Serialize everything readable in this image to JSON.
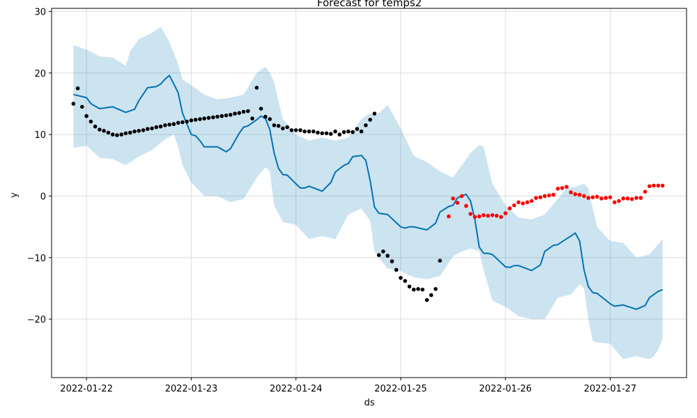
{
  "chart_data": {
    "type": "line",
    "title": "Forecast for temps2",
    "xlabel": "ds",
    "ylabel": "y",
    "x_ticks": [
      "2022-01-22",
      "2022-01-23",
      "2022-01-24",
      "2022-01-25",
      "2022-01-26",
      "2022-01-27"
    ],
    "y_ticks": [
      "30",
      "20",
      "10",
      "0",
      "−10",
      "−20"
    ],
    "xlim": [
      "2022-01-21T16:00",
      "2022-01-27T17:30"
    ],
    "ylim": [
      -29.5,
      30.5
    ],
    "grid": true,
    "legend": false,
    "colors": {
      "forecast_line": "#0072b2",
      "interval_band": "#0072b2",
      "history_points": "#000000",
      "test_points": "#ff0000",
      "grid": "#dddddd"
    },
    "series": [
      {
        "name": "yhat",
        "kind": "line",
        "x": [
          "2022-01-21T21:00",
          "2022-01-22T00:00",
          "2022-01-22T01:00",
          "2022-01-22T03:00",
          "2022-01-22T06:00",
          "2022-01-22T09:00",
          "2022-01-22T11:00",
          "2022-01-22T12:00",
          "2022-01-22T14:00",
          "2022-01-22T16:00",
          "2022-01-22T17:00",
          "2022-01-22T18:00",
          "2022-01-22T19:00",
          "2022-01-22T21:00",
          "2022-01-22T22:00",
          "2022-01-23T00:00",
          "2022-01-23T01:00",
          "2022-01-23T02:00",
          "2022-01-23T03:00",
          "2022-01-23T06:00",
          "2022-01-23T08:00",
          "2022-01-23T09:00",
          "2022-01-23T11:00",
          "2022-01-23T12:00",
          "2022-01-23T13:00",
          "2022-01-23T15:00",
          "2022-01-23T16:00",
          "2022-01-23T17:00",
          "2022-01-23T18:00",
          "2022-01-23T19:00",
          "2022-01-23T20:00",
          "2022-01-23T21:00",
          "2022-01-23T22:00",
          "2022-01-24T00:00",
          "2022-01-24T01:00",
          "2022-01-24T02:00",
          "2022-01-24T03:00",
          "2022-01-24T06:00",
          "2022-01-24T08:00",
          "2022-01-24T09:00",
          "2022-01-24T11:00",
          "2022-01-24T12:00",
          "2022-01-24T13:00",
          "2022-01-24T15:00",
          "2022-01-24T16:00",
          "2022-01-24T17:00",
          "2022-01-24T18:00",
          "2022-01-24T19:00",
          "2022-01-24T20:00",
          "2022-01-24T21:00",
          "2022-01-25T00:00",
          "2022-01-25T01:00",
          "2022-01-25T02:00",
          "2022-01-25T03:00",
          "2022-01-25T06:00",
          "2022-01-25T08:00",
          "2022-01-25T09:00",
          "2022-01-25T11:00",
          "2022-01-25T12:00",
          "2022-01-25T13:00",
          "2022-01-25T15:00",
          "2022-01-25T16:00",
          "2022-01-25T17:00",
          "2022-01-25T18:00",
          "2022-01-25T19:00",
          "2022-01-25T20:00",
          "2022-01-25T21:00",
          "2022-01-26T00:00",
          "2022-01-26T01:00",
          "2022-01-26T02:00",
          "2022-01-26T03:00",
          "2022-01-26T06:00",
          "2022-01-26T08:00",
          "2022-01-26T09:00",
          "2022-01-26T11:00",
          "2022-01-26T12:00",
          "2022-01-26T13:00",
          "2022-01-26T15:00",
          "2022-01-26T16:00",
          "2022-01-26T17:00",
          "2022-01-26T18:00",
          "2022-01-26T19:00",
          "2022-01-26T20:00",
          "2022-01-26T21:00",
          "2022-01-27T00:00",
          "2022-01-27T01:00",
          "2022-01-27T02:00",
          "2022-01-27T03:00",
          "2022-01-27T06:00",
          "2022-01-27T08:00",
          "2022-01-27T09:00",
          "2022-01-27T11:00",
          "2022-01-27T12:00"
        ],
        "values": [
          16.5,
          16.0,
          15.0,
          14.2,
          14.5,
          13.6,
          14.1,
          15.5,
          17.6,
          17.8,
          18.2,
          19.0,
          19.6,
          16.8,
          13.5,
          10.0,
          9.8,
          9.0,
          8.0,
          8.0,
          7.2,
          7.7,
          10.2,
          11.2,
          11.4,
          12.4,
          13.0,
          12.6,
          10.8,
          7.0,
          4.5,
          3.5,
          3.4,
          2.0,
          1.3,
          1.3,
          1.6,
          0.8,
          2.2,
          3.9,
          5.0,
          5.3,
          6.4,
          6.6,
          5.8,
          2.5,
          -1.8,
          -2.8,
          -2.9,
          -3.0,
          -5.0,
          -5.2,
          -5.0,
          -5.0,
          -5.5,
          -4.4,
          -2.6,
          -1.7,
          -1.5,
          -0.3,
          0.3,
          -0.8,
          -3.8,
          -8.3,
          -9.3,
          -9.3,
          -9.5,
          -11.5,
          -11.6,
          -11.3,
          -11.3,
          -12.1,
          -11.2,
          -9.0,
          -8.0,
          -7.9,
          -7.4,
          -6.5,
          -6.0,
          -7.3,
          -12.0,
          -14.7,
          -15.7,
          -15.8,
          -17.5,
          -17.9,
          -17.8,
          -17.7,
          -18.4,
          -17.8,
          -16.5,
          -15.5,
          -15.2
        ]
      },
      {
        "name": "yhat_lower",
        "kind": "band_lower",
        "x": [
          "2022-01-21T21:00",
          "2022-01-22T00:00",
          "2022-01-22T03:00",
          "2022-01-22T06:00",
          "2022-01-22T09:00",
          "2022-01-22T12:00",
          "2022-01-22T15:00",
          "2022-01-22T18:00",
          "2022-01-22T20:00",
          "2022-01-22T21:00",
          "2022-01-22T22:00",
          "2022-01-23T00:00",
          "2022-01-23T03:00",
          "2022-01-23T06:00",
          "2022-01-23T09:00",
          "2022-01-23T12:00",
          "2022-01-23T15:00",
          "2022-01-23T17:00",
          "2022-01-23T18:00",
          "2022-01-23T19:00",
          "2022-01-23T21:00",
          "2022-01-24T00:00",
          "2022-01-24T03:00",
          "2022-01-24T06:00",
          "2022-01-24T09:00",
          "2022-01-24T12:00",
          "2022-01-24T15:00",
          "2022-01-24T17:00",
          "2022-01-24T18:00",
          "2022-01-24T19:00",
          "2022-01-24T21:00",
          "2022-01-25T00:00",
          "2022-01-25T03:00",
          "2022-01-25T06:00",
          "2022-01-25T09:00",
          "2022-01-25T12:00",
          "2022-01-25T14:00",
          "2022-01-25T16:00",
          "2022-01-25T18:00",
          "2022-01-25T19:00",
          "2022-01-25T21:00",
          "2022-01-26T00:00",
          "2022-01-26T03:00",
          "2022-01-26T06:00",
          "2022-01-26T09:00",
          "2022-01-26T12:00",
          "2022-01-26T15:00",
          "2022-01-26T17:00",
          "2022-01-26T18:00",
          "2022-01-26T19:00",
          "2022-01-26T20:00",
          "2022-01-26T21:00",
          "2022-01-27T00:00",
          "2022-01-27T03:00",
          "2022-01-27T06:00",
          "2022-01-27T09:00",
          "2022-01-27T10:00",
          "2022-01-27T11:00",
          "2022-01-27T12:00"
        ],
        "values": [
          7.8,
          8.2,
          6.2,
          6.0,
          5.0,
          6.4,
          7.5,
          9.2,
          10.0,
          8.0,
          5.0,
          2.2,
          0.0,
          0.0,
          -1.0,
          -0.5,
          3.0,
          4.7,
          4.0,
          -1.5,
          -4.2,
          -4.7,
          -7.0,
          -6.5,
          -7.0,
          -3.0,
          -2.0,
          -4.0,
          -9.0,
          -10.0,
          -11.8,
          -12.2,
          -13.2,
          -13.5,
          -13.0,
          -9.8,
          -9.0,
          -8.5,
          -9.0,
          -12.0,
          -17.0,
          -18.0,
          -19.5,
          -20.0,
          -20.0,
          -16.5,
          -16.0,
          -14.3,
          -15.0,
          -20.0,
          -23.5,
          -23.8,
          -24.0,
          -26.5,
          -26.0,
          -26.5,
          -26.0,
          -25.0,
          -23.2
        ]
      },
      {
        "name": "yhat_upper",
        "kind": "band_upper",
        "x": [
          "2022-01-21T21:00",
          "2022-01-22T00:00",
          "2022-01-22T03:00",
          "2022-01-22T06:00",
          "2022-01-22T09:00",
          "2022-01-22T10:00",
          "2022-01-22T12:00",
          "2022-01-22T15:00",
          "2022-01-22T17:00",
          "2022-01-22T19:00",
          "2022-01-22T21:00",
          "2022-01-22T22:00",
          "2022-01-23T00:00",
          "2022-01-23T03:00",
          "2022-01-23T06:00",
          "2022-01-23T09:00",
          "2022-01-23T12:00",
          "2022-01-23T15:00",
          "2022-01-23T17:00",
          "2022-01-23T18:00",
          "2022-01-23T19:00",
          "2022-01-23T21:00",
          "2022-01-24T00:00",
          "2022-01-24T03:00",
          "2022-01-24T06:00",
          "2022-01-24T09:00",
          "2022-01-24T12:00",
          "2022-01-24T15:00",
          "2022-01-24T17:00",
          "2022-01-24T18:00",
          "2022-01-24T19:00",
          "2022-01-24T21:00",
          "2022-01-25T00:00",
          "2022-01-25T03:00",
          "2022-01-25T06:00",
          "2022-01-25T09:00",
          "2022-01-25T12:00",
          "2022-01-25T15:00",
          "2022-01-25T16:00",
          "2022-01-25T18:00",
          "2022-01-25T19:00",
          "2022-01-25T21:00",
          "2022-01-26T00:00",
          "2022-01-26T03:00",
          "2022-01-26T06:00",
          "2022-01-26T09:00",
          "2022-01-26T12:00",
          "2022-01-26T14:00",
          "2022-01-26T16:00",
          "2022-01-26T18:00",
          "2022-01-26T19:00",
          "2022-01-26T21:00",
          "2022-01-27T00:00",
          "2022-01-27T03:00",
          "2022-01-27T06:00",
          "2022-01-27T09:00",
          "2022-01-27T12:00"
        ],
        "values": [
          24.5,
          23.8,
          22.7,
          22.5,
          21.2,
          23.5,
          25.5,
          26.5,
          27.5,
          25.0,
          21.5,
          19.0,
          18.0,
          16.5,
          15.7,
          16.0,
          16.5,
          20.0,
          21.0,
          20.0,
          18.5,
          12.5,
          10.0,
          9.0,
          9.5,
          9.0,
          9.5,
          12.5,
          13.5,
          13.0,
          13.5,
          14.8,
          11.0,
          6.5,
          5.5,
          4.0,
          3.0,
          6.0,
          7.0,
          8.3,
          8.0,
          2.0,
          -1.5,
          -3.5,
          -3.8,
          -3.0,
          -0.5,
          1.3,
          1.5,
          2.0,
          1.2,
          -5.0,
          -7.3,
          -7.6,
          -10.0,
          -9.5,
          -7.0
        ]
      },
      {
        "name": "history",
        "kind": "points",
        "color": "#000000",
        "x": [
          "2022-01-21T21:00",
          "2022-01-21T22:00",
          "2022-01-21T23:00",
          "2022-01-22T00:00",
          "2022-01-22T01:00",
          "2022-01-22T02:00",
          "2022-01-22T03:00",
          "2022-01-22T04:00",
          "2022-01-22T05:00",
          "2022-01-22T06:00",
          "2022-01-22T07:00",
          "2022-01-22T08:00",
          "2022-01-22T09:00",
          "2022-01-22T10:00",
          "2022-01-22T11:00",
          "2022-01-22T12:00",
          "2022-01-22T13:00",
          "2022-01-22T14:00",
          "2022-01-22T15:00",
          "2022-01-22T16:00",
          "2022-01-22T17:00",
          "2022-01-22T18:00",
          "2022-01-22T19:00",
          "2022-01-22T20:00",
          "2022-01-22T21:00",
          "2022-01-22T22:00",
          "2022-01-22T23:00",
          "2022-01-23T00:00",
          "2022-01-23T01:00",
          "2022-01-23T02:00",
          "2022-01-23T03:00",
          "2022-01-23T04:00",
          "2022-01-23T05:00",
          "2022-01-23T06:00",
          "2022-01-23T07:00",
          "2022-01-23T08:00",
          "2022-01-23T09:00",
          "2022-01-23T10:00",
          "2022-01-23T11:00",
          "2022-01-23T12:00",
          "2022-01-23T13:00",
          "2022-01-23T14:00",
          "2022-01-23T15:00",
          "2022-01-23T16:00",
          "2022-01-23T17:00",
          "2022-01-23T18:00",
          "2022-01-23T19:00",
          "2022-01-23T20:00",
          "2022-01-23T21:00",
          "2022-01-23T22:00",
          "2022-01-23T23:00",
          "2022-01-24T00:00",
          "2022-01-24T01:00",
          "2022-01-24T02:00",
          "2022-01-24T03:00",
          "2022-01-24T04:00",
          "2022-01-24T05:00",
          "2022-01-24T06:00",
          "2022-01-24T07:00",
          "2022-01-24T08:00",
          "2022-01-24T09:00",
          "2022-01-24T10:00",
          "2022-01-24T11:00",
          "2022-01-24T12:00",
          "2022-01-24T13:00",
          "2022-01-24T14:00",
          "2022-01-24T15:00",
          "2022-01-24T16:00",
          "2022-01-24T17:00",
          "2022-01-24T18:00",
          "2022-01-24T19:00",
          "2022-01-24T20:00",
          "2022-01-24T21:00",
          "2022-01-24T22:00",
          "2022-01-24T23:00",
          "2022-01-25T00:00",
          "2022-01-25T01:00",
          "2022-01-25T02:00",
          "2022-01-25T03:00",
          "2022-01-25T04:00",
          "2022-01-25T05:00",
          "2022-01-25T06:00",
          "2022-01-25T07:00",
          "2022-01-25T08:00",
          "2022-01-25T09:00"
        ],
        "values": [
          15.0,
          17.5,
          14.5,
          13.0,
          12.1,
          11.3,
          10.8,
          10.6,
          10.3,
          10.0,
          9.9,
          10.0,
          10.2,
          10.3,
          10.5,
          10.6,
          10.7,
          10.9,
          11.0,
          11.2,
          11.3,
          11.5,
          11.6,
          11.7,
          11.9,
          12.0,
          12.1,
          12.3,
          12.4,
          12.5,
          12.6,
          12.7,
          12.8,
          12.9,
          13.0,
          13.1,
          13.2,
          13.4,
          13.5,
          13.7,
          13.8,
          12.6,
          17.6,
          14.2,
          12.9,
          12.5,
          11.5,
          11.4,
          11.0,
          11.2,
          10.7,
          10.7,
          10.7,
          10.5,
          10.5,
          10.5,
          10.3,
          10.2,
          10.2,
          10.1,
          10.5,
          10.0,
          10.4,
          10.5,
          10.4,
          10.9,
          10.5,
          11.5,
          12.4,
          13.4,
          -9.6,
          -9.0,
          -9.7,
          -10.6,
          -12.0,
          -13.3,
          -13.8,
          -14.7,
          -15.2,
          -15.1,
          -15.2,
          -16.9,
          -16.1,
          -15.1,
          -10.5
        ]
      },
      {
        "name": "test",
        "kind": "points",
        "color": "#ff0000",
        "x": [
          "2022-01-25T11:00",
          "2022-01-25T12:00",
          "2022-01-25T13:00",
          "2022-01-25T14:00",
          "2022-01-25T15:00",
          "2022-01-25T16:00",
          "2022-01-25T17:00",
          "2022-01-25T18:00",
          "2022-01-25T19:00",
          "2022-01-25T20:00",
          "2022-01-25T21:00",
          "2022-01-25T22:00",
          "2022-01-25T23:00",
          "2022-01-26T00:00",
          "2022-01-26T01:00",
          "2022-01-26T02:00",
          "2022-01-26T03:00",
          "2022-01-26T04:00",
          "2022-01-26T05:00",
          "2022-01-26T06:00",
          "2022-01-26T07:00",
          "2022-01-26T08:00",
          "2022-01-26T09:00",
          "2022-01-26T10:00",
          "2022-01-26T11:00",
          "2022-01-26T12:00",
          "2022-01-26T13:00",
          "2022-01-26T14:00",
          "2022-01-26T15:00",
          "2022-01-26T16:00",
          "2022-01-26T17:00",
          "2022-01-26T18:00",
          "2022-01-26T19:00",
          "2022-01-26T20:00",
          "2022-01-26T21:00",
          "2022-01-26T22:00",
          "2022-01-26T23:00",
          "2022-01-27T00:00",
          "2022-01-27T01:00",
          "2022-01-27T02:00",
          "2022-01-27T03:00",
          "2022-01-27T04:00",
          "2022-01-27T05:00",
          "2022-01-27T06:00",
          "2022-01-27T07:00",
          "2022-01-27T08:00",
          "2022-01-27T09:00",
          "2022-01-27T10:00",
          "2022-01-27T11:00",
          "2022-01-27T12:00"
        ],
        "values": [
          -3.3,
          -0.4,
          -1.1,
          0.0,
          -1.6,
          -2.9,
          -3.4,
          -3.3,
          -3.1,
          -3.2,
          -3.1,
          -3.2,
          -3.4,
          -2.8,
          -2.0,
          -1.5,
          -1.0,
          -1.2,
          -1.0,
          -0.8,
          -0.3,
          -0.2,
          0.0,
          0.1,
          0.2,
          1.2,
          1.3,
          1.5,
          0.6,
          0.3,
          0.2,
          0.0,
          -0.3,
          -0.2,
          -0.1,
          -0.4,
          -0.3,
          -0.2,
          -1.0,
          -0.8,
          -0.4,
          -0.4,
          -0.5,
          -0.3,
          -0.3,
          0.7,
          1.6,
          1.7,
          1.7,
          1.7
        ]
      }
    ]
  }
}
